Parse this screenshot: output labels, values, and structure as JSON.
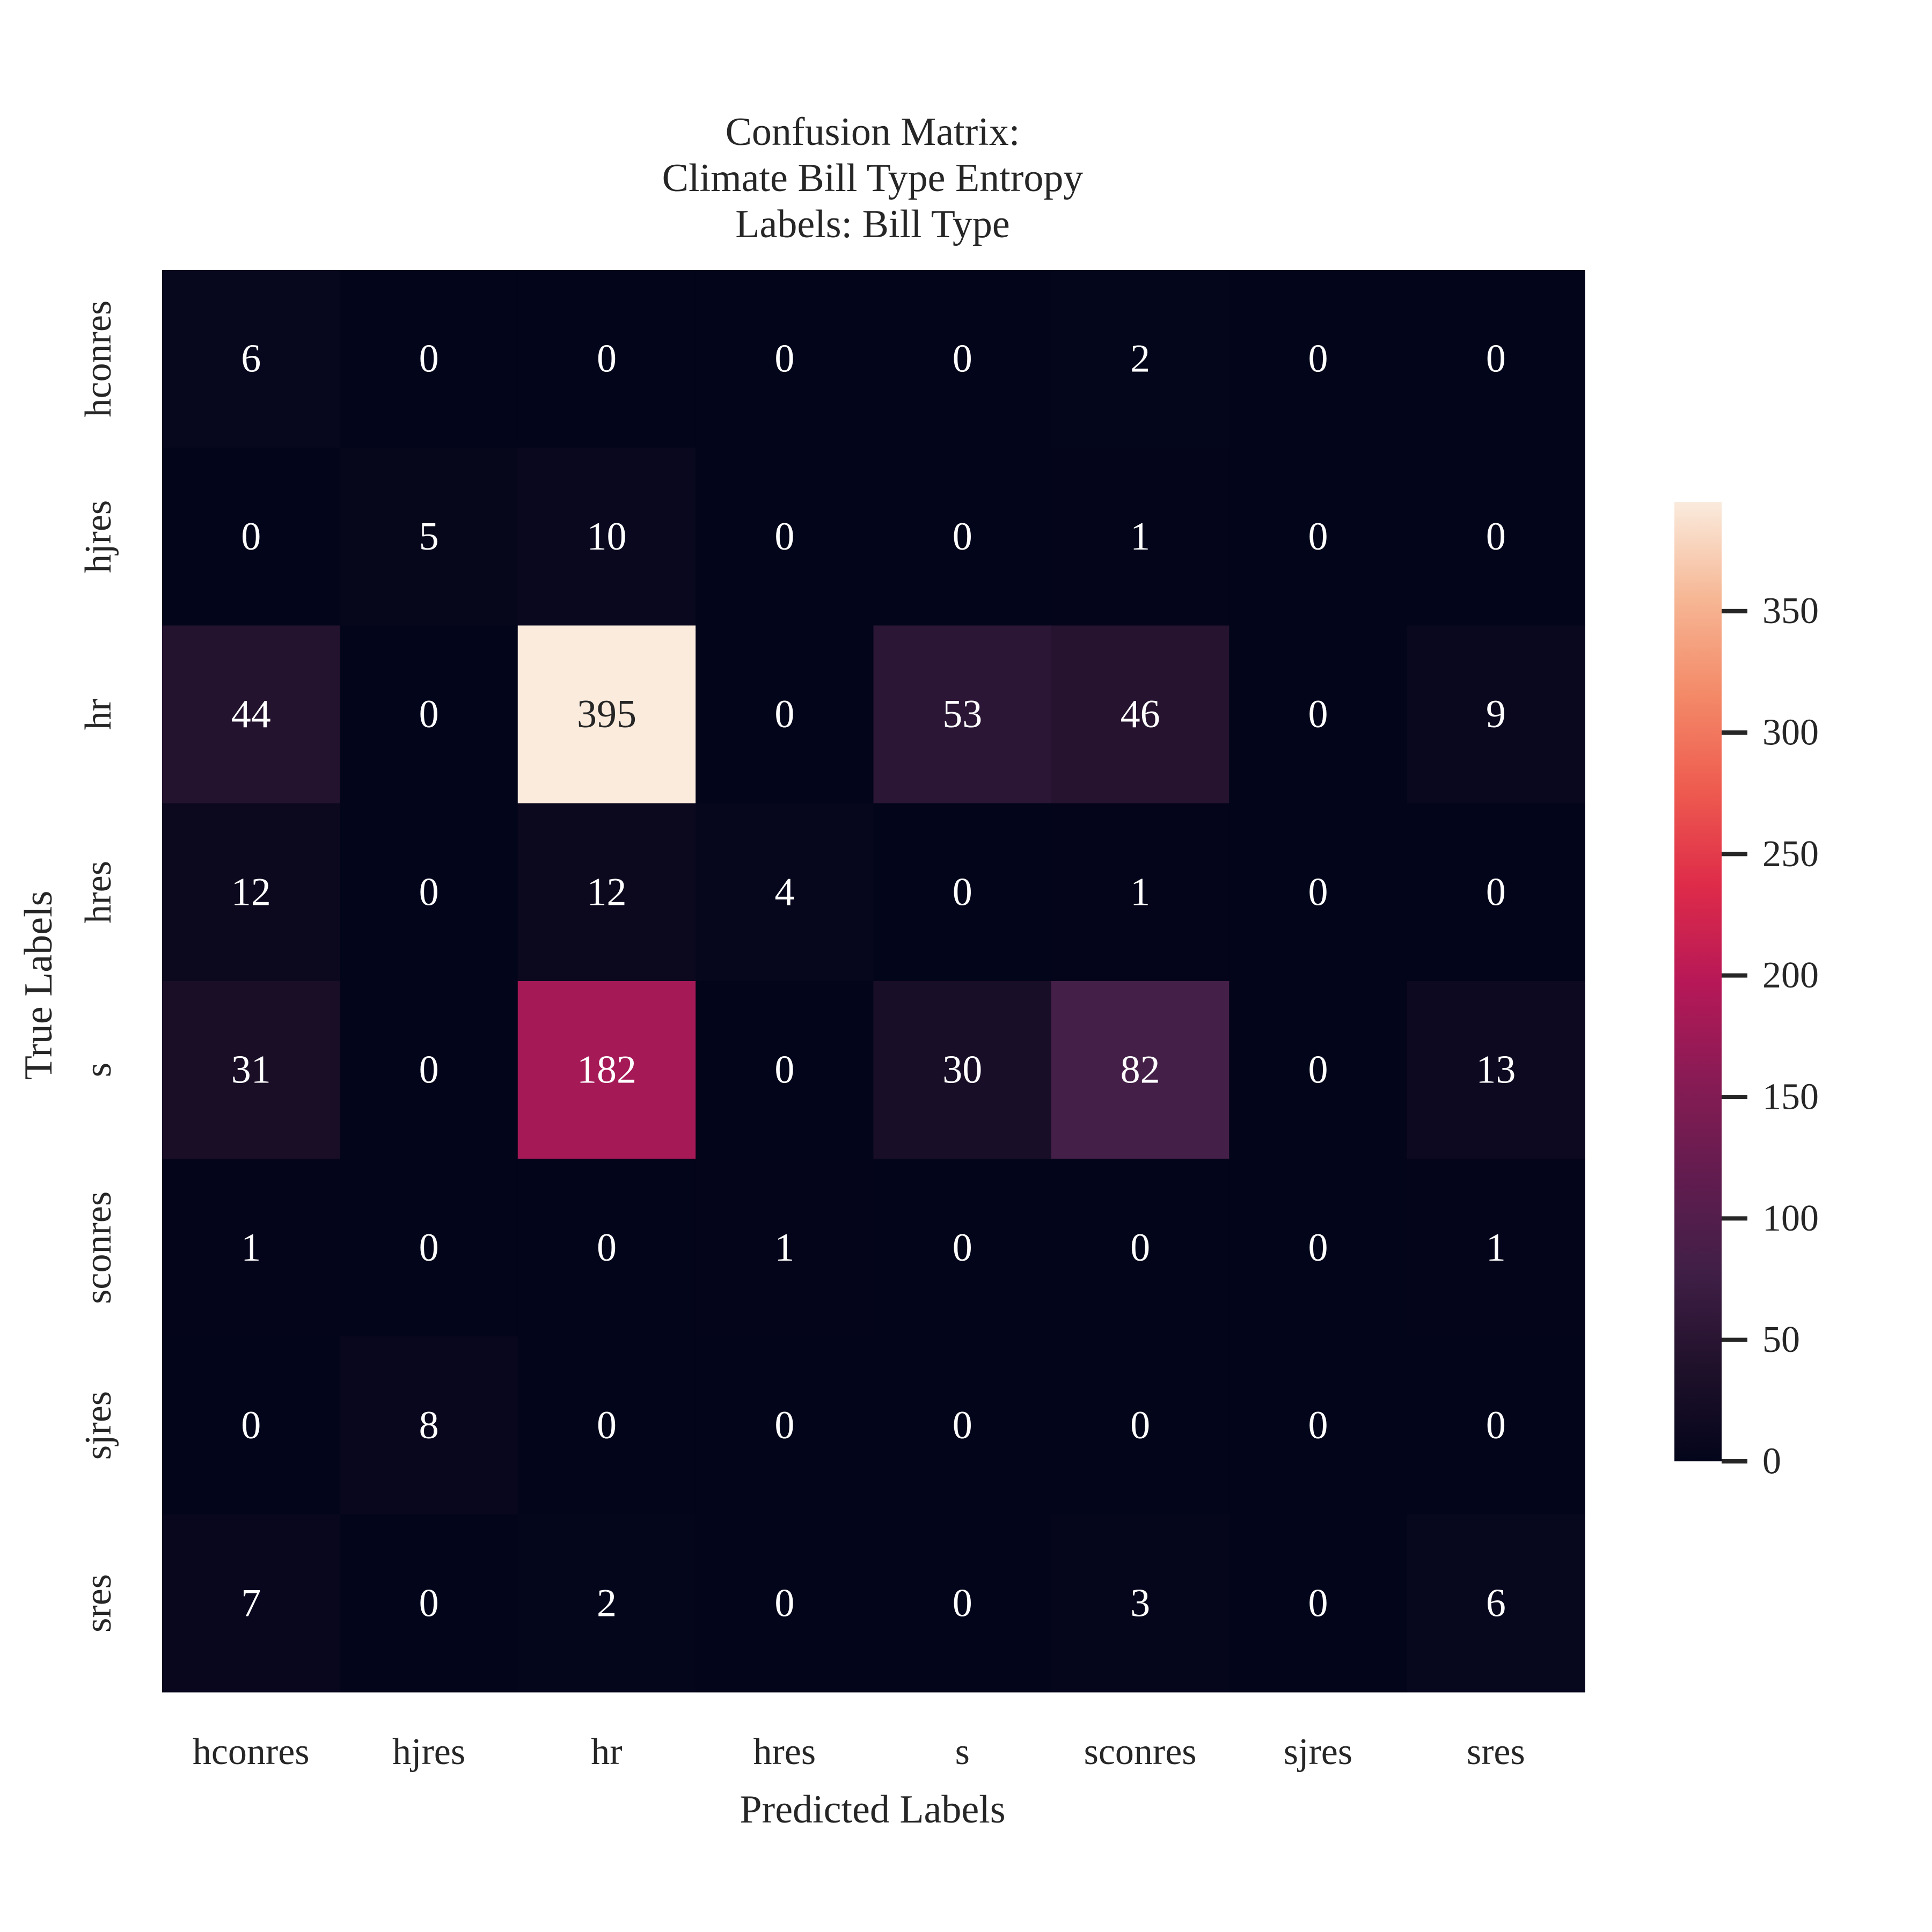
{
  "chart_data": {
    "type": "heatmap",
    "title_lines": [
      "Confusion Matrix:",
      "Climate Bill Type Entropy",
      "Labels: Bill Type"
    ],
    "xlabel": "Predicted Labels",
    "ylabel": "True Labels",
    "x_categories": [
      "hconres",
      "hjres",
      "hr",
      "hres",
      "s",
      "sconres",
      "sjres",
      "sres"
    ],
    "y_categories": [
      "hconres",
      "hjres",
      "hr",
      "hres",
      "s",
      "sconres",
      "sjres",
      "sres"
    ],
    "matrix": [
      [
        6,
        0,
        0,
        0,
        0,
        2,
        0,
        0
      ],
      [
        0,
        5,
        10,
        0,
        0,
        1,
        0,
        0
      ],
      [
        44,
        0,
        395,
        0,
        53,
        46,
        0,
        9
      ],
      [
        12,
        0,
        12,
        4,
        0,
        1,
        0,
        0
      ],
      [
        31,
        0,
        182,
        0,
        30,
        82,
        0,
        13
      ],
      [
        1,
        0,
        0,
        1,
        0,
        0,
        0,
        1
      ],
      [
        0,
        8,
        0,
        0,
        0,
        0,
        0,
        0
      ],
      [
        7,
        0,
        2,
        0,
        0,
        3,
        0,
        6
      ]
    ],
    "colorbar": {
      "range": [
        0,
        395
      ],
      "ticks": [
        0,
        50,
        100,
        150,
        200,
        250,
        300,
        350
      ],
      "tick_labels": [
        "0",
        "50",
        "100",
        "150",
        "200",
        "250",
        "300",
        "350"
      ],
      "colormap": "rocket"
    },
    "colors": {
      "cell_text_light": "#ffffff",
      "cell_text_dark": "#262626",
      "axis_text": "#262626"
    },
    "grid": false,
    "colorbar_placement": "right"
  }
}
